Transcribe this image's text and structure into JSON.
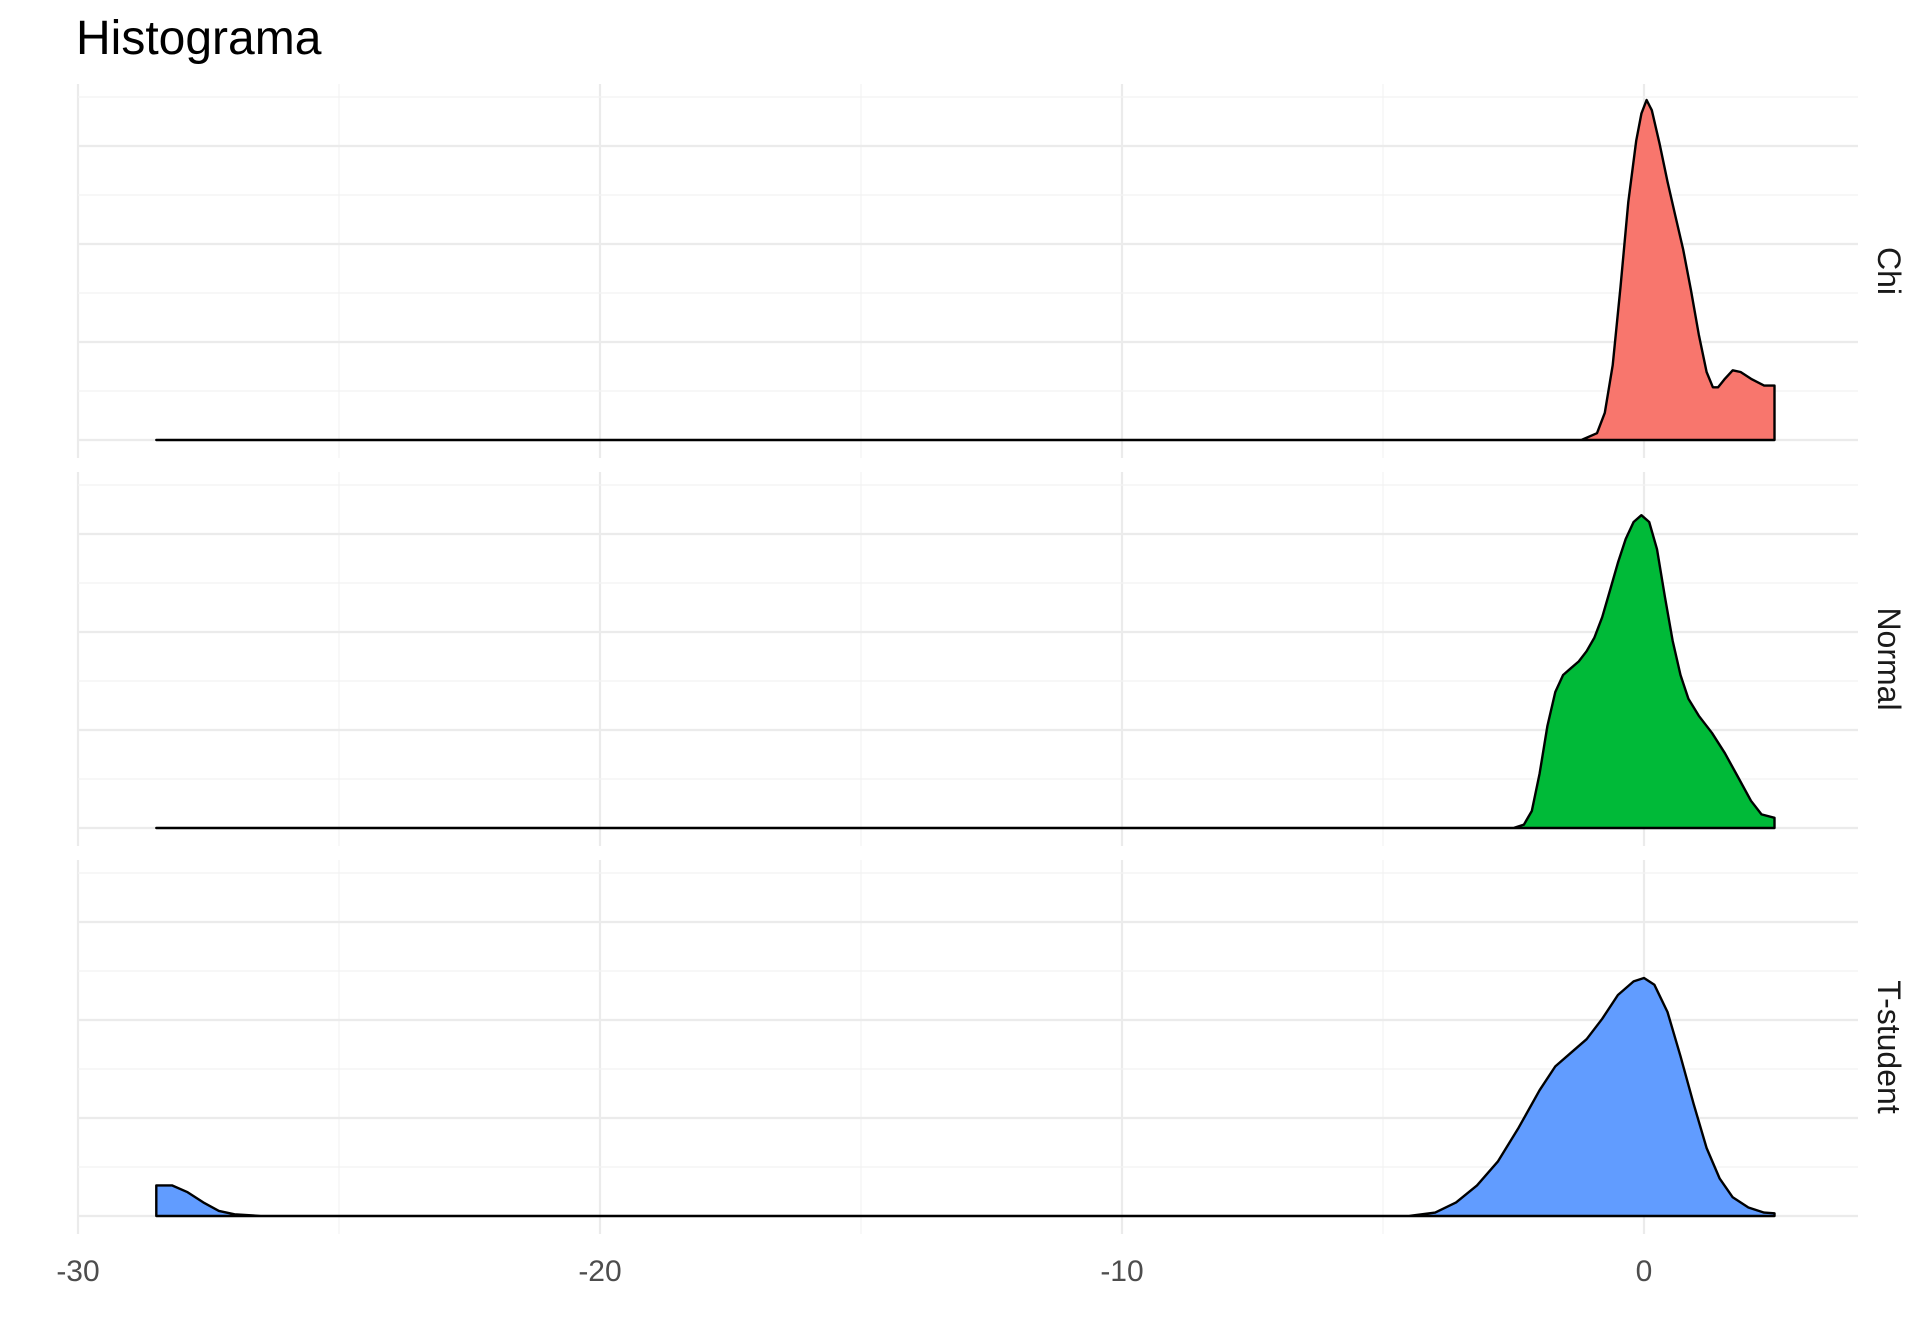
{
  "chart_data": {
    "type": "area",
    "subtype": "ridgeline-density",
    "title": "Histograma",
    "xlabel": "",
    "ylabel": "",
    "xlim": [
      -30,
      4
    ],
    "x_ticks": [
      -30,
      -20,
      -10,
      0
    ],
    "x_tick_labels": [
      "-30",
      "-20",
      "-10",
      "0"
    ],
    "grid": true,
    "legend": "none",
    "series": [
      {
        "name": "Chi",
        "color": "#F8766D",
        "points": [
          [
            -28.5,
            0
          ],
          [
            -1.2,
            0
          ],
          [
            -0.9,
            0.02
          ],
          [
            -0.75,
            0.08
          ],
          [
            -0.6,
            0.22
          ],
          [
            -0.45,
            0.45
          ],
          [
            -0.3,
            0.7
          ],
          [
            -0.15,
            0.88
          ],
          [
            -0.05,
            0.96
          ],
          [
            0.05,
            1.0
          ],
          [
            0.15,
            0.97
          ],
          [
            0.3,
            0.87
          ],
          [
            0.45,
            0.76
          ],
          [
            0.6,
            0.66
          ],
          [
            0.75,
            0.56
          ],
          [
            0.9,
            0.44
          ],
          [
            1.05,
            0.31
          ],
          [
            1.2,
            0.2
          ],
          [
            1.32,
            0.155
          ],
          [
            1.42,
            0.155
          ],
          [
            1.55,
            0.18
          ],
          [
            1.7,
            0.205
          ],
          [
            1.85,
            0.2
          ],
          [
            2.05,
            0.18
          ],
          [
            2.3,
            0.16
          ],
          [
            2.5,
            0.16
          ],
          [
            2.5,
            0
          ]
        ]
      },
      {
        "name": "Normal",
        "color": "#00BA38",
        "points": [
          [
            -28.5,
            0
          ],
          [
            -2.5,
            0
          ],
          [
            -2.3,
            0.01
          ],
          [
            -2.15,
            0.05
          ],
          [
            -2.0,
            0.16
          ],
          [
            -1.85,
            0.3
          ],
          [
            -1.7,
            0.4
          ],
          [
            -1.55,
            0.45
          ],
          [
            -1.4,
            0.47
          ],
          [
            -1.25,
            0.49
          ],
          [
            -1.1,
            0.52
          ],
          [
            -0.95,
            0.56
          ],
          [
            -0.8,
            0.62
          ],
          [
            -0.65,
            0.7
          ],
          [
            -0.5,
            0.78
          ],
          [
            -0.35,
            0.85
          ],
          [
            -0.2,
            0.9
          ],
          [
            -0.05,
            0.92
          ],
          [
            0.1,
            0.9
          ],
          [
            0.25,
            0.82
          ],
          [
            0.4,
            0.68
          ],
          [
            0.55,
            0.55
          ],
          [
            0.7,
            0.45
          ],
          [
            0.85,
            0.38
          ],
          [
            1.05,
            0.33
          ],
          [
            1.3,
            0.28
          ],
          [
            1.55,
            0.22
          ],
          [
            1.8,
            0.15
          ],
          [
            2.05,
            0.08
          ],
          [
            2.25,
            0.04
          ],
          [
            2.5,
            0.03
          ],
          [
            2.5,
            0
          ]
        ]
      },
      {
        "name": "T-student",
        "color": "#619CFF",
        "points": [
          [
            -28.5,
            0
          ],
          [
            -28.5,
            0.09
          ],
          [
            -28.2,
            0.09
          ],
          [
            -27.9,
            0.07
          ],
          [
            -27.6,
            0.04
          ],
          [
            -27.3,
            0.015
          ],
          [
            -27.0,
            0.005
          ],
          [
            -26.5,
            0
          ],
          [
            -4.5,
            0
          ],
          [
            -4.0,
            0.01
          ],
          [
            -3.6,
            0.04
          ],
          [
            -3.2,
            0.09
          ],
          [
            -2.8,
            0.16
          ],
          [
            -2.4,
            0.26
          ],
          [
            -2.0,
            0.37
          ],
          [
            -1.7,
            0.44
          ],
          [
            -1.4,
            0.48
          ],
          [
            -1.1,
            0.52
          ],
          [
            -0.8,
            0.58
          ],
          [
            -0.5,
            0.65
          ],
          [
            -0.2,
            0.69
          ],
          [
            0.0,
            0.7
          ],
          [
            0.2,
            0.68
          ],
          [
            0.45,
            0.6
          ],
          [
            0.7,
            0.47
          ],
          [
            0.95,
            0.33
          ],
          [
            1.2,
            0.2
          ],
          [
            1.45,
            0.11
          ],
          [
            1.7,
            0.055
          ],
          [
            2.0,
            0.025
          ],
          [
            2.3,
            0.01
          ],
          [
            2.5,
            0.008
          ],
          [
            2.5,
            0
          ]
        ]
      }
    ]
  }
}
